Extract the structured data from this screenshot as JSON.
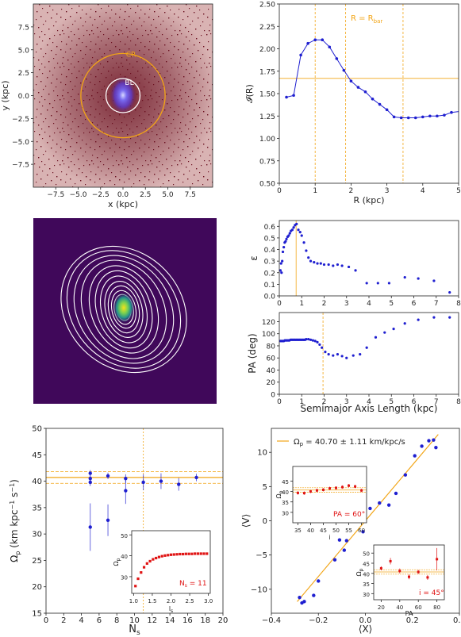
{
  "colors": {
    "blue": "#1f1fd0",
    "orange": "#f2a516",
    "red": "#e01414",
    "disk": "#6a1020",
    "bg_purple": "#40085a"
  },
  "chart_data": [
    {
      "id": "particle-map",
      "type": "scatter",
      "xlabel": "x (kpc)",
      "ylabel": "y (kpc)",
      "xlim": [
        -10,
        10
      ],
      "ylim": [
        -10,
        10
      ],
      "xticks": [
        "−7.5",
        "−5.0",
        "−2.5",
        "0.0",
        "2.5",
        "5.0",
        "7.5"
      ],
      "xtick_values": [
        -7.5,
        -5,
        -2.5,
        0,
        2.5,
        5,
        7.5
      ],
      "yticks": [
        "7.5",
        "5.0",
        "2.5",
        "0.0",
        "−2.5",
        "−5.0",
        "−7.5"
      ],
      "ytick_values": [
        7.5,
        5,
        2.5,
        0,
        -2.5,
        -5,
        -7.5
      ],
      "circles": [
        {
          "label": "CR",
          "radius": 4.7,
          "color": "orange"
        },
        {
          "label": "BL",
          "radius": 1.9,
          "color": "white"
        }
      ]
    },
    {
      "id": "tremaine-weinberg-ratio",
      "type": "line",
      "xlabel": "R (kpc)",
      "ylabel": "𝓘(R)",
      "xlim": [
        0,
        5
      ],
      "ylim": [
        0.5,
        2.5
      ],
      "xticks": [
        "0",
        "1",
        "2",
        "3",
        "4",
        "5"
      ],
      "yticks": [
        "2.50",
        "2.25",
        "2.00",
        "1.75",
        "1.50",
        "1.25",
        "1.00",
        "0.75",
        "0.50"
      ],
      "x": [
        0.2,
        0.4,
        0.6,
        0.8,
        1.0,
        1.2,
        1.4,
        1.6,
        1.8,
        2.0,
        2.2,
        2.4,
        2.6,
        2.8,
        3.0,
        3.2,
        3.4,
        3.6,
        3.8,
        4.0,
        4.2,
        4.4,
        4.6,
        4.8
      ],
      "y": [
        1.46,
        1.48,
        1.93,
        2.06,
        2.1,
        2.1,
        2.02,
        1.89,
        1.76,
        1.64,
        1.57,
        1.52,
        1.44,
        1.38,
        1.32,
        1.24,
        1.23,
        1.23,
        1.23,
        1.24,
        1.25,
        1.25,
        1.26,
        1.29
      ],
      "vlines": [
        1.0,
        1.85,
        3.45
      ],
      "hline": 1.67,
      "annotation": "R = R",
      "annotation_sub": "bar"
    },
    {
      "id": "isophote-image",
      "type": "heatmap"
    },
    {
      "id": "ellipticity-profile",
      "type": "scatter",
      "ylabel": "ε",
      "xlim": [
        0,
        8
      ],
      "ylim": [
        0,
        0.65
      ],
      "xticks": [
        "0",
        "1",
        "2",
        "3",
        "4",
        "5",
        "6",
        "7",
        "8"
      ],
      "yticks": [
        "0.6",
        "0.5",
        "0.4",
        "0.3",
        "0.2",
        "0.1",
        "0.0"
      ],
      "x": [
        0.05,
        0.08,
        0.1,
        0.13,
        0.16,
        0.2,
        0.24,
        0.28,
        0.32,
        0.37,
        0.42,
        0.47,
        0.52,
        0.58,
        0.64,
        0.7,
        0.77,
        0.85,
        0.93,
        1.0,
        1.1,
        1.2,
        1.3,
        1.4,
        1.55,
        1.7,
        1.85,
        2.0,
        2.2,
        2.4,
        2.6,
        2.8,
        3.1,
        3.4,
        3.9,
        4.4,
        4.9,
        5.6,
        6.2,
        6.9,
        7.6
      ],
      "y": [
        0.22,
        0.28,
        0.2,
        0.3,
        0.38,
        0.42,
        0.46,
        0.47,
        0.49,
        0.51,
        0.52,
        0.54,
        0.56,
        0.57,
        0.59,
        0.61,
        0.62,
        0.57,
        0.55,
        0.52,
        0.46,
        0.39,
        0.33,
        0.3,
        0.29,
        0.28,
        0.28,
        0.27,
        0.27,
        0.26,
        0.27,
        0.26,
        0.25,
        0.22,
        0.11,
        0.11,
        0.11,
        0.16,
        0.15,
        0.13,
        0.03
      ],
      "vline": 0.75
    },
    {
      "id": "position-angle-profile",
      "type": "scatter",
      "xlabel": "Semimajor Axis Length (kpc)",
      "ylabel": "PA (deg)",
      "xlim": [
        0,
        8
      ],
      "ylim": [
        0,
        135
      ],
      "xticks": [
        "0",
        "1",
        "2",
        "3",
        "4",
        "5",
        "6",
        "7",
        "8"
      ],
      "yticks": [
        "120",
        "100",
        "80",
        "60",
        "40",
        "20",
        "0"
      ],
      "x": [
        0.05,
        0.1,
        0.15,
        0.2,
        0.25,
        0.3,
        0.35,
        0.4,
        0.45,
        0.5,
        0.55,
        0.6,
        0.65,
        0.7,
        0.75,
        0.8,
        0.85,
        0.9,
        0.95,
        1.0,
        1.05,
        1.1,
        1.15,
        1.2,
        1.3,
        1.4,
        1.5,
        1.6,
        1.7,
        1.8,
        1.9,
        2.05,
        2.2,
        2.4,
        2.6,
        2.8,
        3.0,
        3.3,
        3.6,
        3.9,
        4.3,
        4.7,
        5.1,
        5.6,
        6.2,
        6.9,
        7.6
      ],
      "y": [
        88,
        88,
        88,
        88,
        89,
        89,
        89,
        89,
        89,
        90,
        90,
        90,
        90,
        90,
        90,
        90,
        90,
        90,
        90,
        90,
        90,
        90,
        90,
        91,
        91,
        90,
        89,
        88,
        86,
        82,
        77,
        70,
        66,
        64,
        66,
        63,
        60,
        64,
        66,
        77,
        94,
        102,
        108,
        117,
        123,
        127,
        127
      ],
      "vline": 1.95
    },
    {
      "id": "pattern-speed-vs-ns",
      "type": "scatter",
      "xlabel": "N",
      "xlabel_sub": "s",
      "ylabel": "Ω",
      "ylabel_sub": "p",
      "ylabel_rest": " (km kpc",
      "ylabel_sup1": "−1",
      "ylabel_mid": " s",
      "ylabel_sup2": "−1",
      "ylabel_end": ")",
      "xlim": [
        0,
        20
      ],
      "ylim": [
        15,
        50
      ],
      "xticks": [
        "0",
        "2",
        "4",
        "6",
        "8",
        "10",
        "12",
        "14",
        "16",
        "18",
        "20"
      ],
      "yticks": [
        "50",
        "45",
        "40",
        "35",
        "30",
        "25",
        "20",
        "15"
      ],
      "points": [
        {
          "x": 5,
          "y": 41.5,
          "err": 0.6
        },
        {
          "x": 5,
          "y": 40.5,
          "err": 0.6
        },
        {
          "x": 5,
          "y": 39.8,
          "err": 0.7
        },
        {
          "x": 5,
          "y": 31.3,
          "err": 4.5
        },
        {
          "x": 7,
          "y": 41.0,
          "err": 0.6
        },
        {
          "x": 7,
          "y": 32.6,
          "err": 3.0
        },
        {
          "x": 9,
          "y": 40.5,
          "err": 0.8
        },
        {
          "x": 9,
          "y": 38.2,
          "err": 2.5
        },
        {
          "x": 11,
          "y": 39.8,
          "err": 1.5
        },
        {
          "x": 13,
          "y": 40.0,
          "err": 1.5
        },
        {
          "x": 15,
          "y": 39.4,
          "err": 1.2
        },
        {
          "x": 17,
          "y": 40.7,
          "err": 0.7
        }
      ],
      "hlines": [
        40.7,
        39.6,
        41.8
      ],
      "vline": 11
    },
    {
      "id": "inset-omega-vs-ls",
      "type": "scatter",
      "xlabel": "l",
      "xlabel_sub": "s",
      "ylabel": "Ω",
      "ylabel_sub": "p",
      "xlim": [
        0.95,
        3.05
      ],
      "ylim": [
        22,
        52
      ],
      "xticks": [
        "1.0",
        "1.5",
        "2.0",
        "2.5",
        "3.0"
      ],
      "yticks": [
        "50",
        "40",
        "30"
      ],
      "x": [
        1.05,
        1.12,
        1.2,
        1.28,
        1.36,
        1.44,
        1.52,
        1.6,
        1.68,
        1.76,
        1.84,
        1.92,
        2.0,
        2.08,
        2.16,
        2.24,
        2.32,
        2.4,
        2.48,
        2.56,
        2.64,
        2.72,
        2.8,
        2.88,
        2.96
      ],
      "y": [
        25.5,
        29,
        32,
        34.5,
        36.3,
        37.4,
        38.3,
        38.9,
        39.4,
        39.8,
        40.1,
        40.3,
        40.5,
        40.6,
        40.7,
        40.8,
        40.8,
        40.9,
        40.9,
        40.9,
        41.0,
        41.0,
        41.0,
        41.0,
        41.0
      ],
      "annotation": "N",
      "annotation_sub": "s",
      "annotation_rest": " = 11"
    },
    {
      "id": "v-vs-x",
      "type": "scatter",
      "xlabel": "⟨X⟩",
      "ylabel": "⟨V⟩",
      "xlim": [
        -0.4,
        0.4
      ],
      "ylim": [
        -13.5,
        13.5
      ],
      "xticks": [
        "−0.4",
        "−0.2",
        "0.0",
        "0.2",
        "0.4"
      ],
      "yticks": [
        "10",
        "5",
        "0",
        "−5",
        "−10"
      ],
      "x": [
        -0.28,
        -0.27,
        -0.26,
        -0.22,
        -0.2,
        -0.13,
        -0.11,
        -0.09,
        -0.08,
        -0.04,
        -0.01,
        0.02,
        0.06,
        0.1,
        0.13,
        0.17,
        0.21,
        0.24,
        0.27,
        0.29,
        0.3
      ],
      "y": [
        -11.2,
        -12.0,
        -11.8,
        -10.9,
        -8.8,
        -5.7,
        -2.8,
        -4.3,
        -2.9,
        0.7,
        -1.6,
        1.8,
        2.6,
        2.3,
        4.0,
        6.7,
        9.5,
        10.9,
        11.7,
        11.8,
        10.7
      ],
      "fit_slope": 40.7,
      "legend": "Ω",
      "legend_sub": "p",
      "legend_rest": " = 40.70 ± 1.11 km/kpc/s"
    },
    {
      "id": "inset-omega-vs-i",
      "type": "scatter",
      "xlabel": "i",
      "ylabel": "Ω",
      "ylabel_sub": "p",
      "xlim": [
        33,
        62
      ],
      "ylim": [
        25,
        52
      ],
      "xticks": [
        "35",
        "40",
        "45",
        "50",
        "55",
        "60"
      ],
      "yticks": [
        "45",
        "40",
        "35",
        "30"
      ],
      "x": [
        35,
        37.5,
        40,
        42.5,
        45,
        47.5,
        50,
        52.5,
        55,
        57.5,
        60
      ],
      "y": [
        39.3,
        39.2,
        40,
        40.5,
        40.8,
        41.5,
        41.7,
        42.1,
        42.8,
        42.4,
        40.5
      ],
      "annotation": "PA = 60°"
    },
    {
      "id": "inset-omega-vs-pa",
      "type": "scatter",
      "xlabel": "PA",
      "ylabel": "Ω",
      "ylabel_sub": "p",
      "xlim": [
        12,
        88
      ],
      "ylim": [
        27,
        54
      ],
      "xticks": [
        "20",
        "40",
        "60",
        "80"
      ],
      "yticks": [
        "50",
        "45",
        "40",
        "35",
        "30"
      ],
      "x": [
        20,
        30,
        40,
        50,
        60,
        70,
        80
      ],
      "y": [
        42.5,
        46.0,
        41.2,
        38.3,
        40.7,
        38.0,
        47.0
      ],
      "err": [
        1.0,
        1.6,
        1.2,
        1.2,
        1.0,
        1.2,
        5.5
      ],
      "annotation": "i = 45°"
    }
  ]
}
